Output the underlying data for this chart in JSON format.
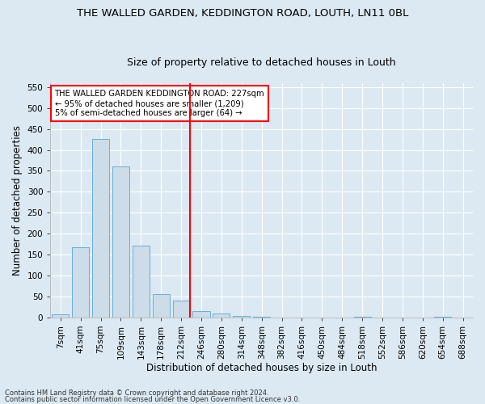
{
  "title": "THE WALLED GARDEN, KEDDINGTON ROAD, LOUTH, LN11 0BL",
  "subtitle": "Size of property relative to detached houses in Louth",
  "xlabel": "Distribution of detached houses by size in Louth",
  "ylabel": "Number of detached properties",
  "categories": [
    "7sqm",
    "41sqm",
    "75sqm",
    "109sqm",
    "143sqm",
    "178sqm",
    "212sqm",
    "246sqm",
    "280sqm",
    "314sqm",
    "348sqm",
    "382sqm",
    "416sqm",
    "450sqm",
    "484sqm",
    "518sqm",
    "552sqm",
    "586sqm",
    "620sqm",
    "654sqm",
    "688sqm"
  ],
  "values": [
    7,
    168,
    427,
    360,
    172,
    55,
    40,
    15,
    10,
    3,
    1,
    0,
    0,
    0,
    0,
    2,
    0,
    0,
    0,
    2,
    0
  ],
  "bar_color": "#ccdce8",
  "bar_edge_color": "#6aaed6",
  "reference_value_sqm": 227,
  "reference_label": "THE WALLED GARDEN KEDDINGTON ROAD: 227sqm",
  "reference_line1": "← 95% of detached houses are smaller (1,209)",
  "reference_line2": "5% of semi-detached houses are larger (64) →",
  "ylim": [
    0,
    560
  ],
  "yticks": [
    0,
    50,
    100,
    150,
    200,
    250,
    300,
    350,
    400,
    450,
    500,
    550
  ],
  "footnote1": "Contains HM Land Registry data © Crown copyright and database right 2024.",
  "footnote2": "Contains public sector information licensed under the Open Government Licence v3.0.",
  "bg_color": "#dce9f3",
  "fig_bg_color": "#dce9f3",
  "grid_color": "#ffffff",
  "title_fontsize": 9.5,
  "subtitle_fontsize": 9,
  "axis_label_fontsize": 8.5,
  "tick_fontsize": 7.5,
  "bar_width": 0.85
}
